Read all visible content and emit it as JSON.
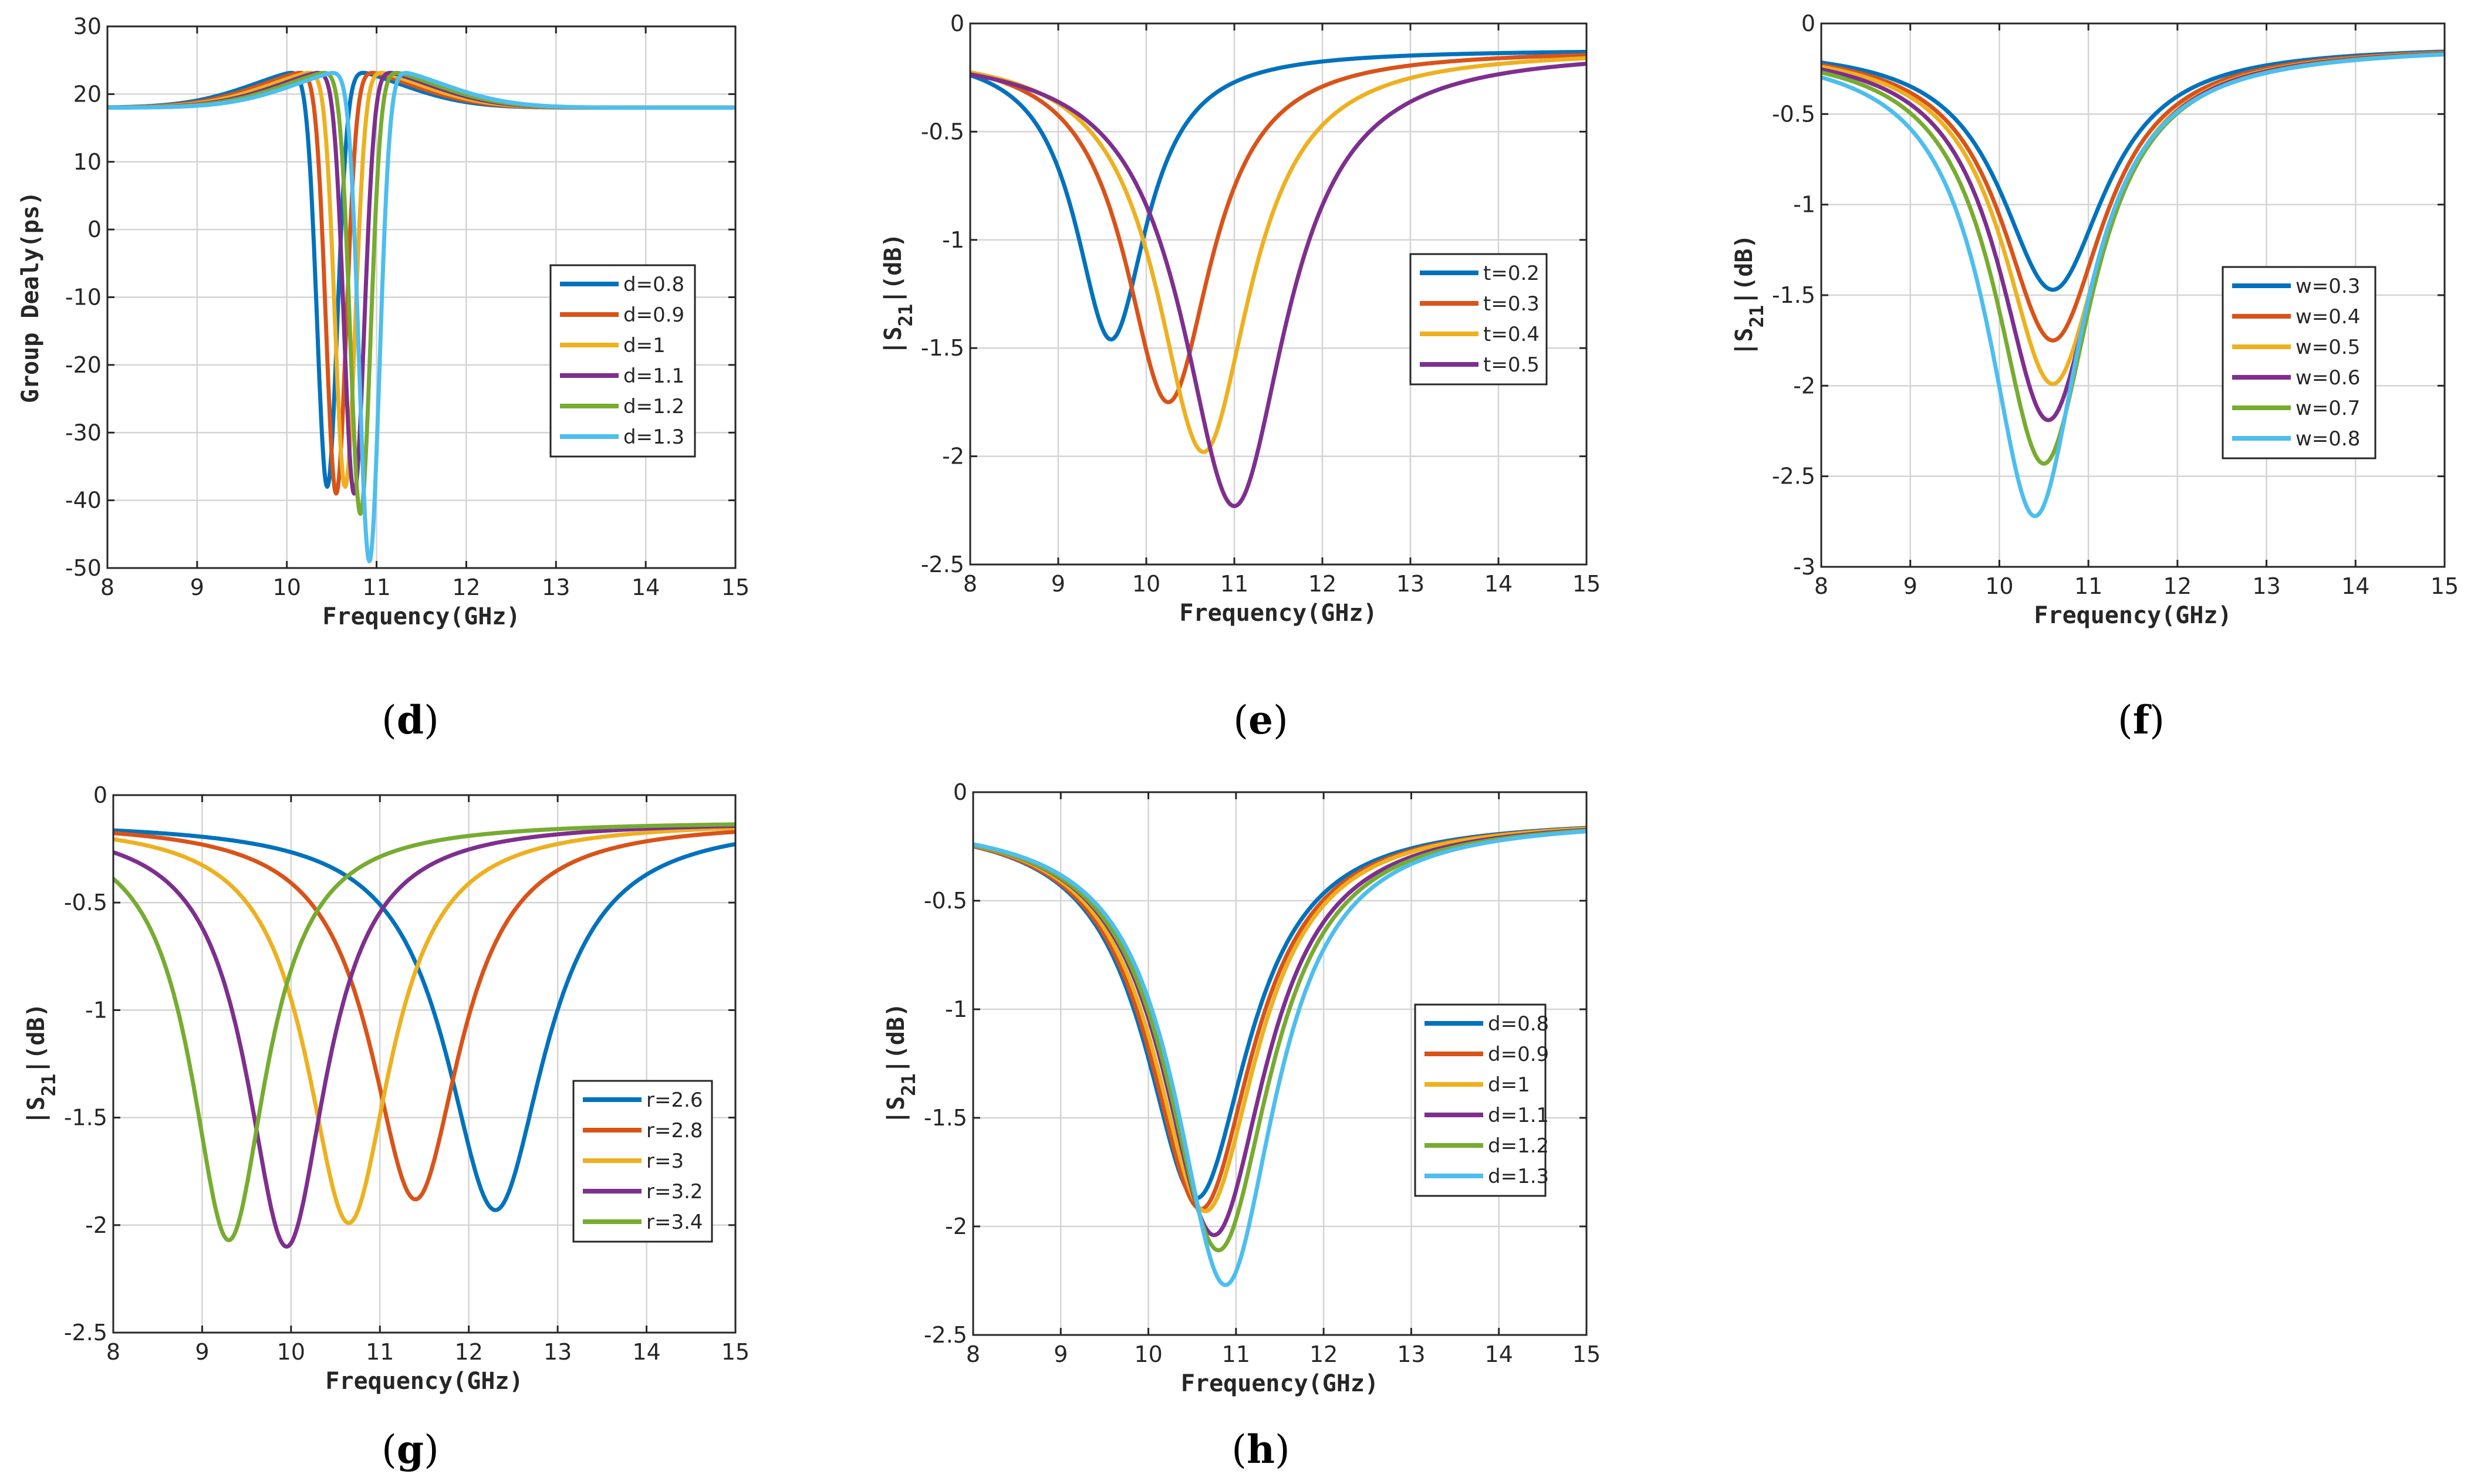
{
  "chart_data": [
    {
      "type": "line",
      "panel_label": "d",
      "xlabel": "Frequency(GHz)",
      "ylabel": "Group Dealy(ps)",
      "xlim": [
        8,
        15
      ],
      "ylim": [
        -50,
        30
      ],
      "xticks": [
        8,
        9,
        10,
        11,
        12,
        13,
        14,
        15
      ],
      "yticks": [
        30,
        20,
        10,
        0,
        -10,
        -20,
        -30,
        -40,
        -50
      ],
      "legend_position": "center-right",
      "series": [
        {
          "name": "d=0.8",
          "color": "#0072BD",
          "model": "gd",
          "f0": 10.45,
          "depth": 38
        },
        {
          "name": "d=0.9",
          "color": "#D95319",
          "model": "gd",
          "f0": 10.55,
          "depth": 39
        },
        {
          "name": "d=1",
          "color": "#EDB120",
          "model": "gd",
          "f0": 10.65,
          "depth": 38
        },
        {
          "name": "d=1.1",
          "color": "#7E2F8E",
          "model": "gd",
          "f0": 10.75,
          "depth": 39
        },
        {
          "name": "d=1.2",
          "color": "#77AC30",
          "model": "gd",
          "f0": 10.82,
          "depth": 42
        },
        {
          "name": "d=1.3",
          "color": "#4DBEEE",
          "model": "gd",
          "f0": 10.92,
          "depth": 49
        }
      ]
    },
    {
      "type": "line",
      "panel_label": "e",
      "xlabel": "Frequency(GHz)",
      "ylabel": "|S21|(dB)",
      "xlim": [
        8,
        15
      ],
      "ylim": [
        -2.5,
        0
      ],
      "xticks": [
        8,
        9,
        10,
        11,
        12,
        13,
        14,
        15
      ],
      "yticks": [
        0,
        -0.5,
        -1,
        -1.5,
        -2,
        -2.5
      ],
      "legend_position": "center-right",
      "series": [
        {
          "name": "t=0.2",
          "color": "#0072BD",
          "model": "s21",
          "f0": 9.6,
          "min": -1.46,
          "width": 0.5
        },
        {
          "name": "t=0.3",
          "color": "#D95319",
          "model": "s21",
          "f0": 10.25,
          "min": -1.75,
          "width": 0.6
        },
        {
          "name": "t=0.4",
          "color": "#EDB120",
          "model": "s21",
          "f0": 10.65,
          "min": -1.98,
          "width": 0.65
        },
        {
          "name": "t=0.5",
          "color": "#7E2F8E",
          "model": "s21",
          "f0": 11.0,
          "min": -2.23,
          "width": 0.72
        }
      ]
    },
    {
      "type": "line",
      "panel_label": "f",
      "xlabel": "Frequency(GHz)",
      "ylabel": "|S21|(dB)",
      "xlim": [
        8,
        15
      ],
      "ylim": [
        -3,
        0
      ],
      "xticks": [
        8,
        9,
        10,
        11,
        12,
        13,
        14,
        15
      ],
      "yticks": [
        0,
        -0.5,
        -1,
        -1.5,
        -2,
        -2.5,
        -3
      ],
      "legend_position": "center-right",
      "series": [
        {
          "name": "w=0.3",
          "color": "#0072BD",
          "model": "s21",
          "f0": 10.6,
          "min": -1.47,
          "width": 0.72
        },
        {
          "name": "w=0.4",
          "color": "#D95319",
          "model": "s21",
          "f0": 10.6,
          "min": -1.75,
          "width": 0.7
        },
        {
          "name": "w=0.5",
          "color": "#EDB120",
          "model": "s21",
          "f0": 10.6,
          "min": -1.99,
          "width": 0.68
        },
        {
          "name": "w=0.6",
          "color": "#7E2F8E",
          "model": "s21",
          "f0": 10.55,
          "min": -2.19,
          "width": 0.67
        },
        {
          "name": "w=0.7",
          "color": "#77AC30",
          "model": "s21",
          "f0": 10.5,
          "min": -2.43,
          "width": 0.66
        },
        {
          "name": "w=0.8",
          "color": "#4DBEEE",
          "model": "s21",
          "f0": 10.4,
          "min": -2.72,
          "width": 0.65
        }
      ]
    },
    {
      "type": "line",
      "panel_label": "g",
      "xlabel": "Frequency(GHz)",
      "ylabel": "|S21|(dB)",
      "xlim": [
        8,
        15
      ],
      "ylim": [
        -2.5,
        0
      ],
      "xticks": [
        8,
        9,
        10,
        11,
        12,
        13,
        14,
        15
      ],
      "yticks": [
        0,
        -0.5,
        -1,
        -1.5,
        -2,
        -2.5
      ],
      "legend_position": "center-right",
      "series": [
        {
          "name": "r=2.6",
          "color": "#0072BD",
          "model": "s21",
          "f0": 12.3,
          "min": -1.93,
          "width": 0.68
        },
        {
          "name": "r=2.8",
          "color": "#D95319",
          "model": "s21",
          "f0": 11.4,
          "min": -1.88,
          "width": 0.62
        },
        {
          "name": "r=3",
          "color": "#EDB120",
          "model": "s21",
          "f0": 10.65,
          "min": -1.99,
          "width": 0.58
        },
        {
          "name": "r=3.2",
          "color": "#7E2F8E",
          "model": "s21",
          "f0": 9.95,
          "min": -2.1,
          "width": 0.55
        },
        {
          "name": "r=3.4",
          "color": "#77AC30",
          "model": "s21",
          "f0": 9.3,
          "min": -2.07,
          "width": 0.52
        }
      ]
    },
    {
      "type": "line",
      "panel_label": "h",
      "xlabel": "Frequency(GHz)",
      "ylabel": "|S21|(dB)",
      "xlim": [
        8,
        15
      ],
      "ylim": [
        -2.5,
        0
      ],
      "xticks": [
        8,
        9,
        10,
        11,
        12,
        13,
        14,
        15
      ],
      "yticks": [
        0,
        -0.5,
        -1,
        -1.5,
        -2,
        -2.5
      ],
      "legend_position": "center-right",
      "series": [
        {
          "name": "d=0.8",
          "color": "#0072BD",
          "model": "s21",
          "f0": 10.55,
          "min": -1.87,
          "width": 0.72
        },
        {
          "name": "d=0.9",
          "color": "#D95319",
          "model": "s21",
          "f0": 10.6,
          "min": -1.92,
          "width": 0.72
        },
        {
          "name": "d=1",
          "color": "#EDB120",
          "model": "s21",
          "f0": 10.65,
          "min": -1.93,
          "width": 0.72
        },
        {
          "name": "d=1.1",
          "color": "#7E2F8E",
          "model": "s21",
          "f0": 10.75,
          "min": -2.04,
          "width": 0.72
        },
        {
          "name": "d=1.2",
          "color": "#77AC30",
          "model": "s21",
          "f0": 10.8,
          "min": -2.11,
          "width": 0.72
        },
        {
          "name": "d=1.3",
          "color": "#4DBEEE",
          "model": "s21",
          "f0": 10.88,
          "min": -2.27,
          "width": 0.7
        }
      ]
    }
  ]
}
